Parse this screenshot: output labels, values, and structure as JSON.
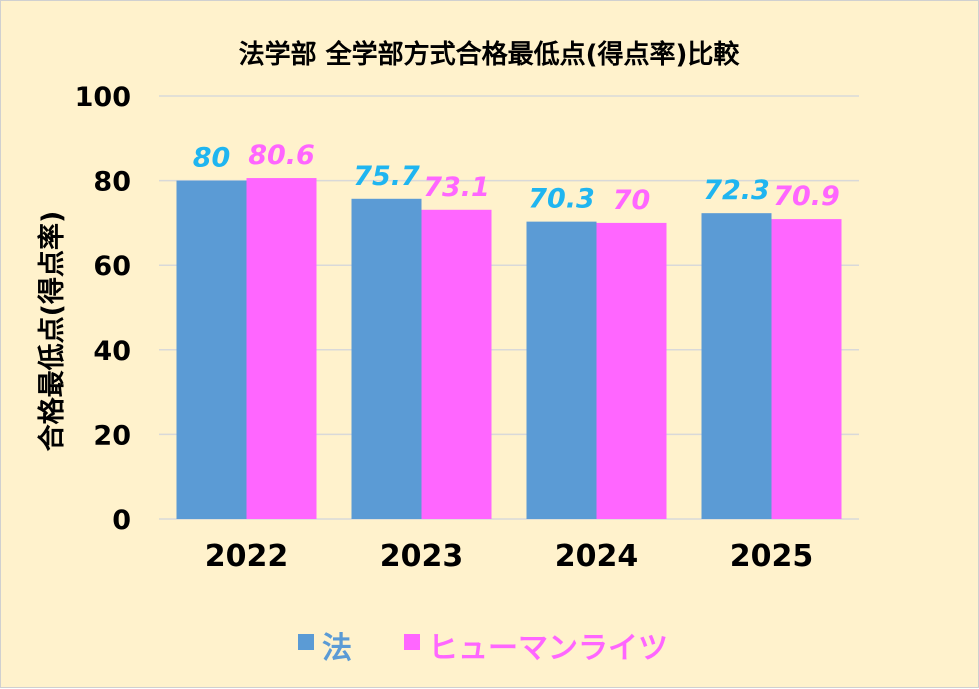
{
  "chart_data": {
    "type": "bar",
    "title": "法学部 全学部方式合格最低点(得点率)比較",
    "xlabel": "",
    "ylabel": "合格最低点(得点率)",
    "categories": [
      "2022",
      "2023",
      "2024",
      "2025"
    ],
    "series": [
      {
        "name": "法",
        "values": [
          80,
          75.7,
          70.3,
          72.3
        ],
        "color": "#5b9bd5",
        "label_color": "#1fb5f0"
      },
      {
        "name": "ヒューマンライツ",
        "values": [
          80.6,
          73.1,
          70,
          70.9
        ],
        "color": "#ff66ff",
        "label_color": "#ff66ff"
      }
    ],
    "ylim": [
      0,
      100
    ],
    "yticks": [
      0,
      20,
      40,
      60,
      80,
      100
    ],
    "grid": true,
    "legend_position": "bottom",
    "background": "#fff2cc",
    "gridline_color": "#d9d9d9"
  }
}
